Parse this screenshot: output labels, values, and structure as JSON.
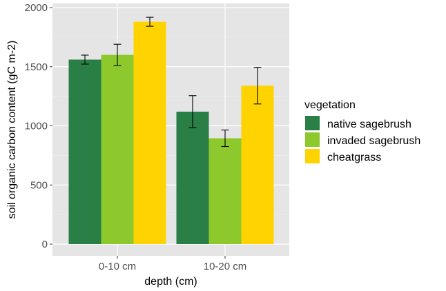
{
  "chart_data": {
    "type": "bar",
    "title": "",
    "xlabel": "depth (cm)",
    "ylabel": "soil organic carbon content (gC m-2)",
    "categories": [
      "0-10 cm",
      "10-20 cm"
    ],
    "ylim": [
      0,
      2000
    ],
    "yticks": [
      0,
      500,
      1000,
      1500,
      2000
    ],
    "grid": true,
    "legend_title": "vegetation",
    "legend_position": "right",
    "series": [
      {
        "name": "native sagebrush",
        "color": "#2a7f46",
        "values": [
          1560,
          1120
        ],
        "errors": [
          38,
          135
        ]
      },
      {
        "name": "invaded sagebrush",
        "color": "#8dc82d",
        "values": [
          1600,
          895
        ],
        "errors": [
          90,
          70
        ]
      },
      {
        "name": "cheatgrass",
        "color": "#ffd300",
        "values": [
          1880,
          1340
        ],
        "errors": [
          38,
          155
        ]
      }
    ]
  }
}
